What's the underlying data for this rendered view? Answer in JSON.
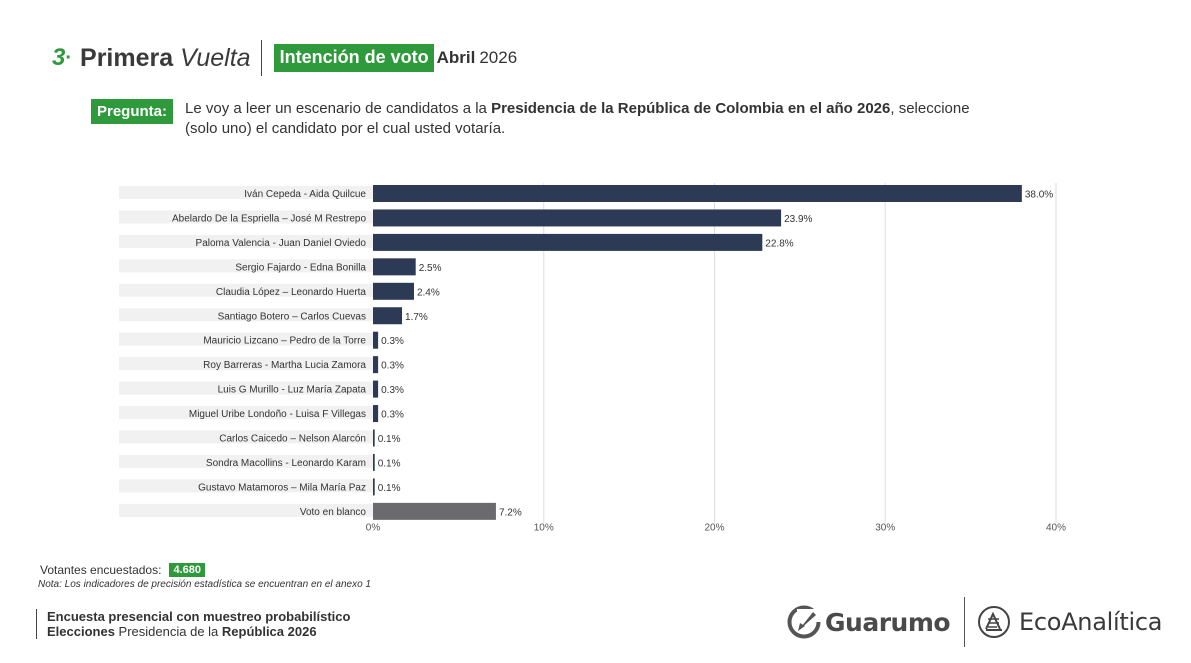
{
  "header": {
    "number": "3",
    "dot": "·",
    "title_bold": "Primera",
    "title_italic": "Vuelta",
    "badge": "Intención de voto",
    "month": "Abril",
    "year": "2026"
  },
  "question": {
    "badge": "Pregunta:",
    "text_part1": "Le voy a leer un escenario de candidatos a la ",
    "text_bold": "Presidencia de la República de Colombia en el año 2026",
    "text_part2": ", seleccione (solo uno) el candidato por el cual usted votaría."
  },
  "chart_data": {
    "type": "bar",
    "orientation": "horizontal",
    "categories": [
      "Iván Cepeda - Aida Quilcue",
      "Abelardo De la Espriella – José M Restrepo",
      "Paloma Valencia - Juan Daniel Oviedo",
      "Sergio Fajardo - Edna Bonilla",
      "Claudia López – Leonardo Huerta",
      "Santiago Botero – Carlos Cuevas",
      "Mauricio Lizcano – Pedro de la Torre",
      "Roy Barreras - Martha Lucia Zamora",
      "Luis G Murillo - Luz María Zapata",
      "Miguel Uribe Londoño - Luisa F Villegas",
      "Carlos Caicedo – Nelson Alarcón",
      "Sondra Macollins - Leonardo Karam",
      "Gustavo Matamoros – Mila María Paz",
      "Voto en blanco"
    ],
    "values": [
      38.0,
      23.9,
      22.8,
      2.5,
      2.4,
      1.7,
      0.3,
      0.3,
      0.3,
      0.3,
      0.1,
      0.1,
      0.1,
      7.2
    ],
    "value_labels": [
      "38.0%",
      "23.9%",
      "22.8%",
      "2.5%",
      "2.4%",
      "1.7%",
      "0.3%",
      "0.3%",
      "0.3%",
      "0.3%",
      "0.1%",
      "0.1%",
      "0.1%",
      "7.2%"
    ],
    "xlim": [
      0,
      40
    ],
    "x_ticks": [
      0,
      10,
      20,
      30,
      40
    ],
    "x_tick_labels": [
      "0%",
      "10%",
      "20%",
      "30%",
      "40%"
    ],
    "grid": true,
    "colors": {
      "candidate": "#2c3a55",
      "blank": "#6b6b6e",
      "label_band": "#f1f1f1",
      "grid": "#dddddd"
    }
  },
  "respondents": {
    "label": "Votantes encuestados:",
    "value": "4.680"
  },
  "note": "Nota: Los indicadores de precisión estadística se encuentran en el anexo 1",
  "footer": {
    "line1": "Encuesta presencial con muestreo probabilístico",
    "line2_bold1": "Elecciones",
    "line2_normal": " Presidencia de la ",
    "line2_bold2": "República 2026"
  },
  "logos": {
    "left": {
      "name": "Guarumo",
      "icon": "guarumo-leaf-icon"
    },
    "right": {
      "name": "EcoAnalítica",
      "icon": "ecoanalitica-emblem-icon"
    }
  },
  "accent_color": "#2e9a3c"
}
